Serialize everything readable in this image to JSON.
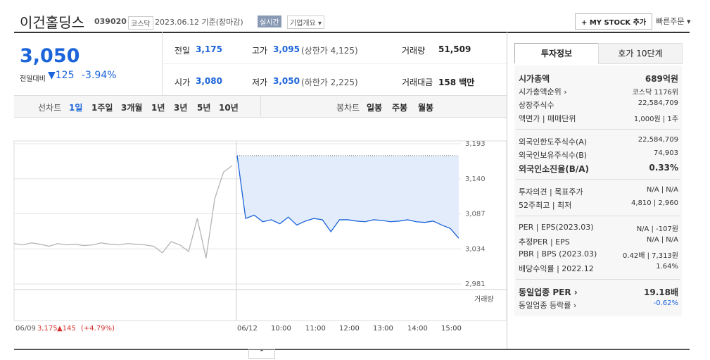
{
  "header": {
    "title": "이건홀딩스",
    "code": "039020",
    "market": "코스닥",
    "date": "2023.06.12 기준(장마감)",
    "realtime": "실시간",
    "overview": "기업개요 ▾",
    "mystock": "+ MY STOCK 추가",
    "quick_order": "빠른주문 ▾"
  },
  "quote": {
    "price": "3,050",
    "change_label": "전일대비",
    "change": "▼125",
    "change_pct": "-3.94%",
    "table": [
      [
        [
          "전일",
          "3,175",
          ""
        ],
        [
          "고가",
          "3,095",
          "(상한가 4,125)"
        ],
        [
          "거래량",
          "51,509",
          ""
        ]
      ],
      [
        [
          "시가",
          "3,080",
          ""
        ],
        [
          "저가",
          "3,050",
          "(하한가 2,225)"
        ],
        [
          "거래대금",
          "158 백만",
          ""
        ]
      ]
    ]
  },
  "tabs": {
    "line_label": "선차트",
    "line": [
      "1일",
      "1주일",
      "3개월",
      "1년",
      "3년",
      "5년",
      "10년"
    ],
    "candle_label": "봉차트",
    "candle": [
      "일봉",
      "주봉",
      "월봉"
    ]
  },
  "chart_data": {
    "type": "line",
    "ylim": [
      2981,
      3193
    ],
    "yticks": [
      {
        "value": 2981,
        "label": "2,981"
      },
      {
        "value": 3034,
        "label": "3,034"
      },
      {
        "value": 3087,
        "label": "3,087"
      },
      {
        "value": 3140,
        "label": "3,140"
      },
      {
        "value": 3193,
        "label": "3,193"
      }
    ],
    "prev_close": 3175,
    "series": [
      {
        "name": "06/09",
        "color": "#b4b4b4",
        "values": [
          3042,
          3040,
          3043,
          3041,
          3038,
          3042,
          3040,
          3041,
          3039,
          3040,
          3043,
          3041,
          3040,
          3042,
          3041,
          3040,
          3038,
          3028,
          3045,
          3040,
          3030,
          3080,
          3020,
          3110,
          3150,
          3160
        ]
      },
      {
        "name": "06/12",
        "color": "#1b64da",
        "values": [
          3175,
          3080,
          3085,
          3075,
          3078,
          3072,
          3082,
          3070,
          3076,
          3080,
          3078,
          3060,
          3078,
          3078,
          3076,
          3075,
          3078,
          3077,
          3075,
          3076,
          3078,
          3075,
          3074,
          3076,
          3070,
          3065,
          3050
        ]
      }
    ],
    "volume_label": "거래량",
    "x_labels": [
      "06/12",
      "10:00",
      "11:00",
      "12:00",
      "13:00",
      "14:00",
      "15:00"
    ],
    "prev_info": [
      "3,175",
      "▲145",
      "(+4.79%)"
    ]
  },
  "info": {
    "tabs": [
      "투자정보",
      "호가 10단계"
    ],
    "groups": [
      [
        [
          "시가총액",
          "689억원"
        ],
        [
          "시가총액순위 ›",
          "코스닥 1176위"
        ],
        [
          "상장주식수",
          "22,584,709"
        ],
        [
          "액면가 | 매매단위",
          "1,000원 | 1주"
        ]
      ],
      [
        [
          "외국인한도주식수(A)",
          "22,584,709"
        ],
        [
          "외국인보유주식수(B)",
          "74,903"
        ],
        [
          "외국인소진율(B/A)",
          "0.33%"
        ]
      ],
      [
        [
          "투자의견 | 목표주가",
          "N/A | N/A"
        ],
        [
          "52주최고 | 최저",
          "4,810 | 2,960"
        ]
      ],
      [
        [
          "PER | EPS(2023.03)",
          "N/A | -107원"
        ],
        [
          "추정PER | EPS",
          "N/A | N/A"
        ],
        [
          "PBR | BPS (2023.03)",
          "0.42배 | 7,313원"
        ],
        [
          "배당수익률 | 2022.12",
          "1.64%"
        ]
      ],
      [
        [
          "동일업종 PER ›",
          "19.18배"
        ],
        [
          "동일업종 등락률 ›",
          "-0.62%"
        ]
      ]
    ]
  }
}
